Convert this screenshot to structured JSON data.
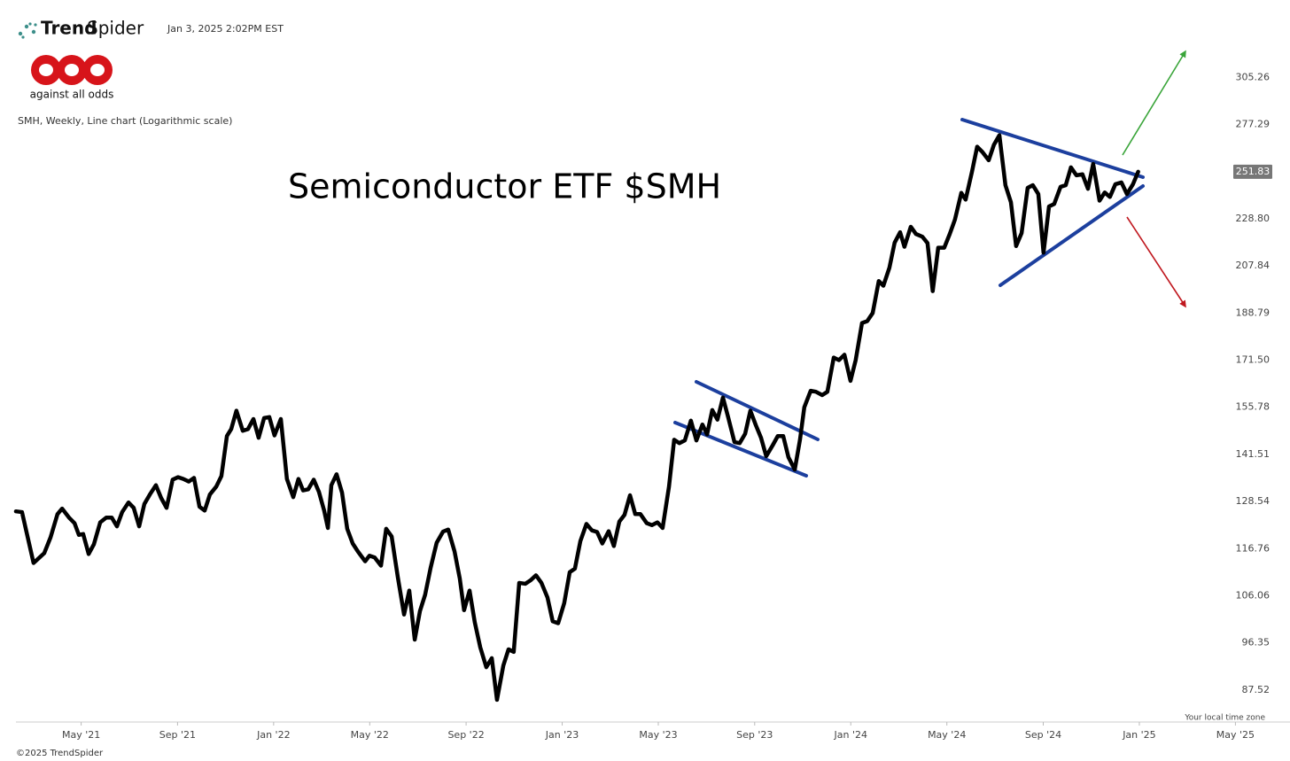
{
  "header": {
    "brand": [
      "Trend",
      "Spider"
    ],
    "timestamp": "Jan 3, 2025 2:02PM EST",
    "logo_text": "against all odds"
  },
  "footer": {
    "timezone_note": "Your local time zone",
    "copyright": "©2025 TrendSpider"
  },
  "chart_data": {
    "type": "line",
    "title": "Semiconductor ETF $SMH",
    "subtitle": "SMH, Weekly, Line chart (Logarithmic scale)",
    "log_scale": true,
    "grid": false,
    "color": "#000000",
    "current_price": 251.83,
    "x": [
      2021.107,
      2021.128,
      2021.168,
      2021.205,
      2021.227,
      2021.251,
      2021.267,
      2021.291,
      2021.31,
      2021.325,
      2021.34,
      2021.359,
      2021.377,
      2021.399,
      2021.42,
      2021.439,
      2021.457,
      2021.475,
      2021.497,
      2021.515,
      2021.534,
      2021.552,
      2021.571,
      2021.592,
      2021.61,
      2021.629,
      2021.65,
      2021.669,
      2021.687,
      2021.706,
      2021.724,
      2021.743,
      2021.761,
      2021.779,
      2021.801,
      2021.819,
      2021.838,
      2021.853,
      2021.871,
      2021.893,
      2021.911,
      2021.93,
      2021.948,
      2021.967,
      2021.985,
      2022.003,
      2022.025,
      2022.046,
      2022.068,
      2022.086,
      2022.102,
      2022.12,
      2022.139,
      2022.157,
      2022.175,
      2022.188,
      2022.2,
      2022.218,
      2022.237,
      2022.255,
      2022.274,
      2022.292,
      2022.317,
      2022.332,
      2022.35,
      2022.372,
      2022.39,
      2022.409,
      2022.43,
      2022.452,
      2022.47,
      2022.489,
      2022.507,
      2022.525,
      2022.544,
      2022.565,
      2022.587,
      2022.605,
      2022.627,
      2022.645,
      2022.66,
      2022.679,
      2022.697,
      2022.716,
      2022.737,
      2022.756,
      2022.774,
      2022.796,
      2022.814,
      2022.832,
      2022.851,
      2022.872,
      2022.891,
      2022.909,
      2022.928,
      2022.949,
      2022.967,
      2022.986,
      2023.007,
      2023.026,
      2023.044,
      2023.063,
      2023.084,
      2023.103,
      2023.121,
      2023.139,
      2023.161,
      2023.179,
      2023.198,
      2023.216,
      2023.235,
      2023.253,
      2023.271,
      2023.293,
      2023.311,
      2023.33,
      2023.348,
      2023.37,
      2023.388,
      2023.406,
      2023.425,
      2023.446,
      2023.465,
      2023.486,
      2023.502,
      2023.52,
      2023.538,
      2023.557,
      2023.575,
      2023.597,
      2023.615,
      2023.634,
      2023.652,
      2023.671,
      2023.689,
      2023.707,
      2023.729,
      2023.747,
      2023.766,
      2023.784,
      2023.806,
      2023.824,
      2023.839,
      2023.861,
      2023.879,
      2023.901,
      2023.919,
      2023.941,
      2023.959,
      2023.978,
      2023.999,
      2024.017,
      2024.039,
      2024.057,
      2024.076,
      2024.097,
      2024.113,
      2024.134,
      2024.152,
      2024.171,
      2024.186,
      2024.208,
      2024.226,
      2024.248,
      2024.266,
      2024.284,
      2024.303,
      2024.324,
      2024.343,
      2024.361,
      2024.383,
      2024.398,
      2024.42,
      2024.438,
      2024.456,
      2024.478,
      2024.496,
      2024.515,
      2024.536,
      2024.555,
      2024.573,
      2024.592,
      2024.613,
      2024.631,
      2024.65,
      2024.668,
      2024.687,
      2024.705,
      2024.727,
      2024.745,
      2024.763,
      2024.782,
      2024.803,
      2024.822,
      2024.84,
      2024.862,
      2024.88,
      2024.898,
      2024.917,
      2024.938,
      2024.957,
      2024.978,
      2024.996
    ],
    "values": [
      126.0,
      125.8,
      113.4,
      115.7,
      119.5,
      125.3,
      126.7,
      124.4,
      123.0,
      120.1,
      120.3,
      115.5,
      117.8,
      123.2,
      124.4,
      124.4,
      122.2,
      125.8,
      128.3,
      126.9,
      122.2,
      127.9,
      130.4,
      132.9,
      129.5,
      126.9,
      134.4,
      135.1,
      134.6,
      133.9,
      134.9,
      127.2,
      126.2,
      130.4,
      132.5,
      135.4,
      146.9,
      149.0,
      154.7,
      148.5,
      149.0,
      152.1,
      146.4,
      152.4,
      152.7,
      147.1,
      152.1,
      134.6,
      129.7,
      134.6,
      131.5,
      131.8,
      134.4,
      131.1,
      126.2,
      121.8,
      132.9,
      135.9,
      130.9,
      121.6,
      118.0,
      116.1,
      113.8,
      115.1,
      114.7,
      112.8,
      121.6,
      119.7,
      110.3,
      102.1,
      107.2,
      97.0,
      102.8,
      106.3,
      112.3,
      118.2,
      120.9,
      121.4,
      116.1,
      109.9,
      103.0,
      107.2,
      100.5,
      95.5,
      91.7,
      93.4,
      85.8,
      92.0,
      95.1,
      94.6,
      108.9,
      108.7,
      109.5,
      110.6,
      108.9,
      105.7,
      100.7,
      100.3,
      104.5,
      111.3,
      112.1,
      118.6,
      122.8,
      121.2,
      120.8,
      118.0,
      121.0,
      117.4,
      123.4,
      125.1,
      130.2,
      125.3,
      125.3,
      123.0,
      122.5,
      123.2,
      121.8,
      132.5,
      145.8,
      144.8,
      145.6,
      151.6,
      145.6,
      150.4,
      147.4,
      154.9,
      151.9,
      158.9,
      152.7,
      145.1,
      144.8,
      147.6,
      154.7,
      150.2,
      146.4,
      141.0,
      144.1,
      146.9,
      146.9,
      140.7,
      137.2,
      145.8,
      155.8,
      161.1,
      160.8,
      159.7,
      160.8,
      172.4,
      171.5,
      173.4,
      164.4,
      171.5,
      185.0,
      185.7,
      188.8,
      201.5,
      199.6,
      207.1,
      217.9,
      222.6,
      216.1,
      225.1,
      221.8,
      220.6,
      217.7,
      197.4,
      215.7,
      215.7,
      221.8,
      228.4,
      241.2,
      237.9,
      251.8,
      265.0,
      262.2,
      257.8,
      266.0,
      271.3,
      245.0,
      236.6,
      216.4,
      222.2,
      243.7,
      245.0,
      240.6,
      213.5,
      234.6,
      235.8,
      244.2,
      245.0,
      254.1,
      250.0,
      250.5,
      243.2,
      255.9,
      237.4,
      241.4,
      239.2,
      245.5,
      246.4,
      240.6,
      245.5,
      251.83
    ],
    "xlim": [
      2021.107,
      2025.473
    ],
    "xticks": [
      {
        "value": 2021.333,
        "label": "May '21"
      },
      {
        "value": 2021.667,
        "label": "Sep '21"
      },
      {
        "value": 2022,
        "label": "Jan '22"
      },
      {
        "value": 2022.333,
        "label": "May '22"
      },
      {
        "value": 2022.667,
        "label": "Sep '22"
      },
      {
        "value": 2023,
        "label": "Jan '23"
      },
      {
        "value": 2023.333,
        "label": "May '23"
      },
      {
        "value": 2023.667,
        "label": "Sep '23"
      },
      {
        "value": 2024,
        "label": "Jan '24"
      },
      {
        "value": 2024.333,
        "label": "May '24"
      },
      {
        "value": 2024.667,
        "label": "Sep '24"
      },
      {
        "value": 2025,
        "label": "Jan '25"
      },
      {
        "value": 2025.333,
        "label": "May '25"
      }
    ],
    "ylim": [
      82,
      332.5
    ],
    "yticks": [
      87.52,
      96.35,
      {
        "value": 106.06,
        "label": "106.06"
      },
      116.76,
      128.54,
      141.51,
      155.78,
      {
        "value": 171.5,
        "label": "171.50"
      },
      188.79,
      207.84,
      {
        "value": 228.8,
        "label": "228.80"
      },
      277.29,
      305.26
    ]
  }
}
